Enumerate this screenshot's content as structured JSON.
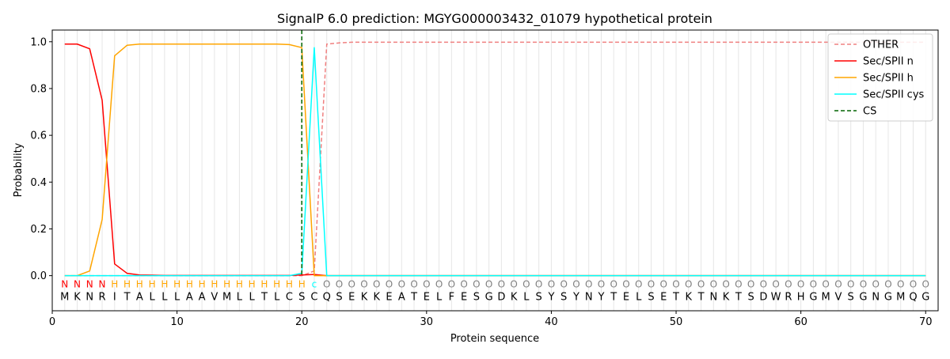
{
  "chart_data": {
    "type": "line",
    "title": "SignalP 6.0 prediction: MGYG000003432_01079 hypothetical protein",
    "xlabel": "Protein sequence",
    "ylabel": "Probability",
    "xlim": [
      0,
      71
    ],
    "ylim": [
      -0.15,
      1.05
    ],
    "xticks": [
      0,
      10,
      20,
      30,
      40,
      50,
      60,
      70
    ],
    "yticks": [
      0.0,
      0.2,
      0.4,
      0.6,
      0.8,
      1.0
    ],
    "grid": "vertical lines at each residue",
    "legend_placement": "top-right",
    "sequence": [
      "M",
      "K",
      "N",
      "R",
      "I",
      "T",
      "A",
      "L",
      "L",
      "L",
      "A",
      "A",
      "V",
      "M",
      "L",
      "L",
      "T",
      "L",
      "C",
      "S",
      "C",
      "Q",
      "S",
      "E",
      "K",
      "K",
      "E",
      "A",
      "T",
      "E",
      "L",
      "F",
      "E",
      "S",
      "G",
      "D",
      "K",
      "L",
      "S",
      "Y",
      "S",
      "Y",
      "N",
      "Y",
      "T",
      "E",
      "L",
      "S",
      "E",
      "T",
      "K",
      "T",
      "N",
      "K",
      "T",
      "S",
      "D",
      "W",
      "R",
      "H",
      "G",
      "M",
      "V",
      "S",
      "G",
      "N",
      "G",
      "M",
      "Q",
      "G"
    ],
    "labels": [
      "N",
      "N",
      "N",
      "N",
      "H",
      "H",
      "H",
      "H",
      "H",
      "H",
      "H",
      "H",
      "H",
      "H",
      "H",
      "H",
      "H",
      "H",
      "H",
      "H",
      "C",
      "O",
      "O",
      "O",
      "O",
      "O",
      "O",
      "O",
      "O",
      "O",
      "O",
      "O",
      "O",
      "O",
      "O",
      "O",
      "O",
      "O",
      "O",
      "O",
      "O",
      "O",
      "O",
      "O",
      "O",
      "O",
      "O",
      "O",
      "O",
      "O",
      "O",
      "O",
      "O",
      "O",
      "O",
      "O",
      "O",
      "O",
      "O",
      "O",
      "O",
      "O",
      "O",
      "O",
      "O",
      "O",
      "O",
      "O",
      "O",
      "O"
    ],
    "label_colors": {
      "N": "#ff0000",
      "H": "#ffa500",
      "C": "#00ffff",
      "O": "#808080"
    },
    "series": [
      {
        "name": "OTHER",
        "color": "#f08080",
        "dash": true,
        "values": [
          0.0,
          0.0,
          0.0,
          0.0,
          0.0,
          0.0,
          0.0,
          0.0,
          0.0,
          0.0,
          0.0,
          0.0,
          0.0,
          0.0,
          0.0,
          0.0,
          0.0,
          0.0,
          0.0,
          0.0,
          0.02,
          0.99,
          0.995,
          0.998,
          0.998,
          0.998,
          0.998,
          0.998,
          0.998,
          0.998,
          0.998,
          0.998,
          0.998,
          0.998,
          0.998,
          0.998,
          0.998,
          0.998,
          0.998,
          0.998,
          0.998,
          0.998,
          0.998,
          0.998,
          0.998,
          0.998,
          0.998,
          0.998,
          0.998,
          0.998,
          0.998,
          0.998,
          0.998,
          0.998,
          0.998,
          0.998,
          0.998,
          0.998,
          0.998,
          0.998,
          0.998,
          0.998,
          0.998,
          0.998,
          0.998,
          0.998,
          0.998,
          0.998,
          0.998,
          0.998
        ]
      },
      {
        "name": "Sec/SPII n",
        "color": "#ff0000",
        "dash": false,
        "values": [
          0.99,
          0.99,
          0.97,
          0.75,
          0.05,
          0.01,
          0.003,
          0.002,
          0.001,
          0.001,
          0.001,
          0.001,
          0.001,
          0.001,
          0.001,
          0.001,
          0.001,
          0.001,
          0.001,
          0.003,
          0.005,
          0.0,
          0.0,
          0.0,
          0.0,
          0.0,
          0.0,
          0.0,
          0.0,
          0.0,
          0.0,
          0.0,
          0.0,
          0.0,
          0.0,
          0.0,
          0.0,
          0.0,
          0.0,
          0.0,
          0.0,
          0.0,
          0.0,
          0.0,
          0.0,
          0.0,
          0.0,
          0.0,
          0.0,
          0.0,
          0.0,
          0.0,
          0.0,
          0.0,
          0.0,
          0.0,
          0.0,
          0.0,
          0.0,
          0.0,
          0.0,
          0.0,
          0.0,
          0.0,
          0.0,
          0.0,
          0.0,
          0.0,
          0.0,
          0.0
        ]
      },
      {
        "name": "Sec/SPII h",
        "color": "#ffa500",
        "dash": false,
        "values": [
          0.0,
          0.0,
          0.02,
          0.24,
          0.94,
          0.985,
          0.99,
          0.99,
          0.99,
          0.99,
          0.99,
          0.99,
          0.99,
          0.99,
          0.99,
          0.99,
          0.99,
          0.99,
          0.988,
          0.975,
          0.0,
          0.0,
          0.0,
          0.0,
          0.0,
          0.0,
          0.0,
          0.0,
          0.0,
          0.0,
          0.0,
          0.0,
          0.0,
          0.0,
          0.0,
          0.0,
          0.0,
          0.0,
          0.0,
          0.0,
          0.0,
          0.0,
          0.0,
          0.0,
          0.0,
          0.0,
          0.0,
          0.0,
          0.0,
          0.0,
          0.0,
          0.0,
          0.0,
          0.0,
          0.0,
          0.0,
          0.0,
          0.0,
          0.0,
          0.0,
          0.0,
          0.0,
          0.0,
          0.0,
          0.0,
          0.0,
          0.0,
          0.0,
          0.0,
          0.0
        ]
      },
      {
        "name": "Sec/SPII cys",
        "color": "#00ffff",
        "dash": false,
        "values": [
          0.0,
          0.0,
          0.0,
          0.0,
          0.0,
          0.0,
          0.0,
          0.0,
          0.0,
          0.0,
          0.0,
          0.0,
          0.0,
          0.0,
          0.0,
          0.0,
          0.0,
          0.0,
          0.0,
          0.01,
          0.975,
          0.0,
          0.0,
          0.0,
          0.0,
          0.0,
          0.0,
          0.0,
          0.0,
          0.0,
          0.0,
          0.0,
          0.0,
          0.0,
          0.0,
          0.0,
          0.0,
          0.0,
          0.0,
          0.0,
          0.0,
          0.0,
          0.0,
          0.0,
          0.0,
          0.0,
          0.0,
          0.0,
          0.0,
          0.0,
          0.0,
          0.0,
          0.0,
          0.0,
          0.0,
          0.0,
          0.0,
          0.0,
          0.0,
          0.0,
          0.0,
          0.0,
          0.0,
          0.0,
          0.0,
          0.0,
          0.0,
          0.0,
          0.0,
          0.0
        ]
      }
    ],
    "cs": {
      "name": "CS",
      "color": "#006400",
      "x": 20
    }
  }
}
